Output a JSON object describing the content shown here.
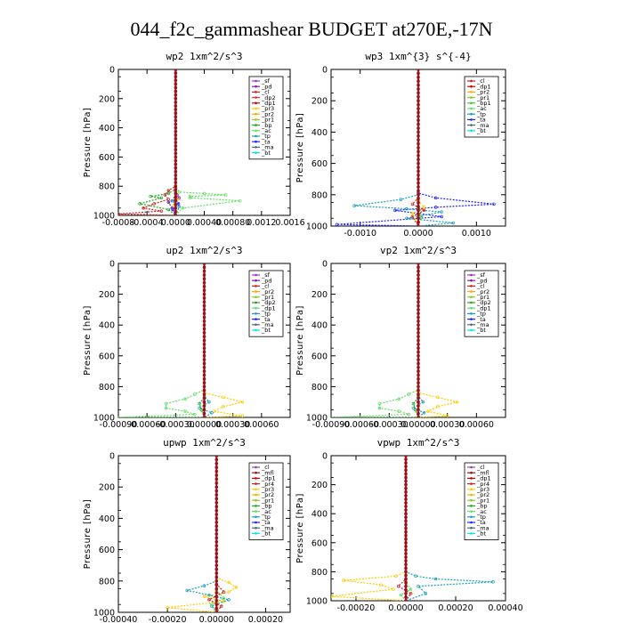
{
  "figure_title": "044_f2c_gammashear  BUDGET at270E,-17N",
  "colors": {
    "sf": "#9933cc",
    "pd": "#7a1fa2",
    "cl": "#cc2222",
    "dp": "#ee3333",
    "pr": "#ffcc00",
    "bp": "#22aa22",
    "ac": "#66dd66",
    "tp": "#1a9fb8",
    "ta": "#2222ff",
    "ma": "#556677",
    "bt": "#00e5ee",
    "mfl": "#8b1a1a",
    "dp1": "#cc0000",
    "pr1": "#88cc22",
    "pr2": "#ffaa00",
    "bp1": "#33cc33",
    "purple": "#8e44ad",
    "darkred": "#a01010"
  },
  "chart_data": [
    {
      "type": "line",
      "title": "wp2   1xm^2/s^3",
      "ylabel": "Pressure  [hPa]",
      "xlim": [
        -0.0008,
        0.0016
      ],
      "ylim": [
        1000,
        0
      ],
      "xticks": [
        -0.0008,
        -0.0004,
        0.0,
        0.0004,
        0.0008,
        0.0012,
        0.0016
      ],
      "xtick_labels": [
        "-0.0008",
        "-0.0004",
        "0.0000",
        "0.00040",
        "0.00080",
        "0.0012",
        "0.0016"
      ],
      "yticks": [
        0,
        200,
        400,
        600,
        800,
        1000
      ],
      "legend": [
        "_sf",
        "_pd",
        "_cl",
        "_dp2",
        "_dp1",
        "_pr3",
        "_pr2",
        "_pr1",
        "_bp",
        "_ac",
        "_tp",
        "_ta",
        "_ma",
        "_bt"
      ],
      "legend_colors": [
        "sf",
        "pd",
        "cl",
        "dp",
        "dp1",
        "pr",
        "pr2",
        "pr1",
        "bp",
        "ac",
        "tp",
        "ta",
        "ma",
        "bt"
      ],
      "legend_position": "top-right",
      "series": [
        {
          "color": "ac",
          "x": [
            0,
            0,
            5e-05,
            0.0004,
            0.0007,
            0.0002,
            0.0002,
            0.0009,
            0.0001,
            0
          ],
          "y": [
            0,
            800,
            840,
            850,
            860,
            870,
            880,
            900,
            950,
            1000
          ]
        },
        {
          "color": "bp",
          "x": [
            0,
            0,
            -0.0001,
            -0.00035,
            -0.0002,
            -0.0005,
            -0.0001,
            0
          ],
          "y": [
            0,
            820,
            850,
            870,
            880,
            920,
            960,
            1000
          ]
        },
        {
          "color": "cl",
          "x": [
            0,
            0,
            -0.0001,
            -0.00015,
            -0.0001,
            -0.0003,
            -0.00045,
            -0.0002,
            -0.0008,
            0
          ],
          "y": [
            0,
            800,
            830,
            860,
            890,
            920,
            950,
            970,
            990,
            1000
          ]
        },
        {
          "color": "pd",
          "x": [
            0,
            0,
            2e-05,
            5e-05,
            -0.0001,
            -5e-05,
            0
          ],
          "y": [
            0,
            840,
            860,
            880,
            910,
            950,
            1000
          ]
        },
        {
          "color": "tp",
          "x": [
            0,
            0,
            -5e-05,
            5e-05,
            0
          ],
          "y": [
            0,
            860,
            900,
            940,
            1000
          ]
        },
        {
          "color": "ta",
          "x": [
            0,
            0,
            4e-05,
            -4e-05,
            0
          ],
          "y": [
            0,
            880,
            920,
            960,
            1000
          ]
        },
        {
          "color": "pr",
          "x": [
            0,
            0,
            3e-05,
            -2e-05,
            0
          ],
          "y": [
            0,
            850,
            890,
            930,
            1000
          ]
        },
        {
          "color": "sf",
          "x": [
            0,
            0,
            0
          ],
          "y": [
            0,
            900,
            1000
          ]
        }
      ]
    },
    {
      "type": "line",
      "title": "wp3   1xm^{3} s^{-4}",
      "ylabel": "Pressure  [hPa]",
      "xlim": [
        -0.0015,
        0.0015
      ],
      "ylim": [
        1000,
        0
      ],
      "xticks": [
        -0.001,
        0.0,
        0.001
      ],
      "xtick_labels": [
        "-0.0010",
        "0.0000",
        "0.0010"
      ],
      "yticks": [
        0,
        200,
        400,
        600,
        800,
        1000
      ],
      "legend": [
        "_cl",
        "_dp1",
        "_pr2",
        "_pr1",
        "_bp1",
        "_ac",
        "_tp",
        "_ta",
        "_ma",
        "_bt"
      ],
      "legend_colors": [
        "cl",
        "dp1",
        "pr2",
        "pr1",
        "bp1",
        "ac",
        "tp",
        "ta",
        "ma",
        "bt"
      ],
      "legend_position": "top-right",
      "series": [
        {
          "color": "ta",
          "x": [
            0,
            0,
            0.0003,
            0.0013,
            0.0003,
            -0.0004,
            0.0004,
            -0.0014,
            0
          ],
          "y": [
            0,
            790,
            820,
            860,
            880,
            900,
            940,
            990,
            1000
          ]
        },
        {
          "color": "tp",
          "x": [
            0,
            0,
            -0.0003,
            -0.0011,
            -0.0002,
            0.0004,
            -0.0002,
            0.0006,
            0
          ],
          "y": [
            0,
            800,
            830,
            870,
            890,
            910,
            950,
            980,
            1000
          ]
        },
        {
          "color": "cl",
          "x": [
            0,
            0,
            -0.0001,
            0.0001,
            -0.0001,
            0
          ],
          "y": [
            0,
            820,
            860,
            900,
            940,
            1000
          ]
        },
        {
          "color": "pr",
          "x": [
            0,
            0,
            0.0001,
            -0.0001,
            0
          ],
          "y": [
            0,
            840,
            880,
            920,
            1000
          ]
        },
        {
          "color": "bp1",
          "x": [
            0,
            0,
            5e-05,
            0
          ],
          "y": [
            0,
            880,
            940,
            1000
          ]
        }
      ]
    },
    {
      "type": "line",
      "title": "up2   1xm^2/s^3",
      "ylabel": "Pressure  [hPa]",
      "xlim": [
        -0.0009,
        0.0009
      ],
      "ylim": [
        1000,
        0
      ],
      "xticks": [
        -0.0009,
        -0.0006,
        -0.0003,
        0.0,
        0.0003,
        0.0006
      ],
      "xtick_labels": [
        "-0.00090",
        "-0.00060",
        "-0.00030",
        "0.00000",
        "0.00030",
        "0.00060"
      ],
      "yticks": [
        0,
        200,
        400,
        600,
        800,
        1000
      ],
      "legend": [
        "_sf",
        "_pd",
        "_cl",
        "_pr2",
        "_pr1",
        "_dp2",
        "_dp1",
        "_tp",
        "_ta",
        "_ma",
        "_bt"
      ],
      "legend_colors": [
        "sf",
        "pd",
        "cl",
        "pr2",
        "pr1",
        "bp",
        "ac",
        "tp",
        "ta",
        "ma",
        "bt"
      ],
      "legend_position": "top-right",
      "series": [
        {
          "color": "ac",
          "x": [
            0,
            0,
            -0.0001,
            -0.0002,
            -0.0004,
            -0.0004,
            -0.0002,
            -0.0001,
            -0.0009,
            0
          ],
          "y": [
            0,
            820,
            850,
            880,
            910,
            940,
            960,
            980,
            1000,
            1000
          ]
        },
        {
          "color": "pr",
          "x": [
            0,
            0,
            0.0002,
            0.0004,
            0.0002,
            0.0001,
            0.0004,
            0
          ],
          "y": [
            0,
            840,
            870,
            900,
            930,
            960,
            990,
            1000
          ]
        },
        {
          "color": "tp",
          "x": [
            0,
            0,
            5e-05,
            -5e-05,
            8e-05,
            0
          ],
          "y": [
            0,
            860,
            900,
            940,
            970,
            1000
          ]
        },
        {
          "color": "bp",
          "x": [
            0,
            0,
            -5e-05,
            -3e-05,
            0
          ],
          "y": [
            0,
            870,
            910,
            950,
            1000
          ]
        },
        {
          "color": "cl",
          "x": [
            0,
            0,
            0
          ],
          "y": [
            0,
            900,
            1000
          ]
        }
      ]
    },
    {
      "type": "line",
      "title": "vp2   1xm^2/s^3",
      "ylabel": "Pressure  [hPa]",
      "xlim": [
        -0.0009,
        0.0009
      ],
      "ylim": [
        1000,
        0
      ],
      "xticks": [
        -0.0009,
        -0.0006,
        -0.0003,
        0.0,
        0.0003,
        0.0006
      ],
      "xtick_labels": [
        "-0.00090",
        "-0.00060",
        "-0.00030",
        "0.00000",
        "0.00030",
        "0.00060"
      ],
      "yticks": [
        0,
        200,
        400,
        600,
        800,
        1000
      ],
      "legend": [
        "_sf",
        "_pd",
        "_cl",
        "_pr2",
        "_pr1",
        "_dp2",
        "_dp1",
        "_tp",
        "_ta",
        "_ma",
        "_bt"
      ],
      "legend_colors": [
        "sf",
        "pd",
        "cl",
        "pr2",
        "pr1",
        "bp",
        "ac",
        "tp",
        "ta",
        "ma",
        "bt"
      ],
      "legend_position": "top-right",
      "series": [
        {
          "color": "ac",
          "x": [
            0,
            0,
            -0.0001,
            -0.0002,
            -0.0004,
            -0.0004,
            -0.0002,
            -0.0001,
            -0.0009,
            0
          ],
          "y": [
            0,
            820,
            850,
            880,
            910,
            940,
            960,
            980,
            1000,
            1000
          ]
        },
        {
          "color": "pr",
          "x": [
            0,
            0,
            0.0002,
            0.0004,
            0.0002,
            0.0001,
            0.0003,
            0
          ],
          "y": [
            0,
            840,
            870,
            900,
            930,
            960,
            990,
            1000
          ]
        },
        {
          "color": "tp",
          "x": [
            0,
            0,
            5e-05,
            -5e-05,
            6e-05,
            0
          ],
          "y": [
            0,
            860,
            900,
            940,
            970,
            1000
          ]
        },
        {
          "color": "bp",
          "x": [
            0,
            0,
            -5e-05,
            -3e-05,
            0
          ],
          "y": [
            0,
            870,
            910,
            950,
            1000
          ]
        },
        {
          "color": "cl",
          "x": [
            0,
            0,
            0
          ],
          "y": [
            0,
            900,
            1000
          ]
        }
      ]
    },
    {
      "type": "line",
      "title": "upwp   1xm^2/s^3",
      "ylabel": "Pressure  [hPa]",
      "xlim": [
        -0.0004,
        0.0003
      ],
      "ylim": [
        1000,
        0
      ],
      "xticks": [
        -0.0004,
        -0.0002,
        0.0,
        0.0002
      ],
      "xtick_labels": [
        "-0.00040",
        "-0.00020",
        "0.00000",
        "0.00020"
      ],
      "yticks": [
        0,
        200,
        400,
        600,
        800,
        1000
      ],
      "legend": [
        "_cl",
        "_mfl",
        "_dp1",
        "_pr4",
        "_pr3",
        "_pr2",
        "_pr1",
        "_bp",
        "_ac",
        "_tp",
        "_ta",
        "_ma",
        "_bt"
      ],
      "legend_colors": [
        "purple",
        "mfl",
        "dp1",
        "cl",
        "pr",
        "pr2",
        "pr1",
        "bp",
        "ac",
        "tp",
        "ta",
        "ma",
        "bt"
      ],
      "legend_position": "top-right",
      "series": [
        {
          "color": "pr",
          "x": [
            0,
            0,
            5e-05,
            8e-05,
            5e-05,
            -5e-05,
            3e-05,
            -0.0002,
            0
          ],
          "y": [
            0,
            780,
            810,
            840,
            870,
            900,
            930,
            970,
            1000
          ]
        },
        {
          "color": "tp",
          "x": [
            0,
            0,
            -5e-05,
            -0.00012,
            -3e-05,
            5e-05,
            -2e-05,
            0
          ],
          "y": [
            0,
            800,
            830,
            860,
            890,
            920,
            960,
            1000
          ]
        },
        {
          "color": "cl",
          "x": [
            0,
            0,
            3e-05,
            -3e-05,
            2e-05,
            0
          ],
          "y": [
            0,
            820,
            870,
            920,
            960,
            1000
          ]
        },
        {
          "color": "ac",
          "x": [
            0,
            0,
            3e-05,
            -2e-05,
            0
          ],
          "y": [
            0,
            860,
            910,
            950,
            1000
          ]
        },
        {
          "color": "purple",
          "x": [
            0,
            0,
            0
          ],
          "y": [
            0,
            900,
            1000
          ]
        }
      ]
    },
    {
      "type": "line",
      "title": "vpwp   1xm^2/s^3",
      "ylabel": "Pressure  [hPa]",
      "xlim": [
        -0.0003,
        0.0004
      ],
      "ylim": [
        1000,
        0
      ],
      "xticks": [
        -0.0002,
        0.0,
        0.0002,
        0.0004
      ],
      "xtick_labels": [
        "-0.00020",
        "0.00000",
        "0.00020",
        "0.00040"
      ],
      "yticks": [
        0,
        200,
        400,
        600,
        800,
        1000
      ],
      "legend": [
        "_cl",
        "_mfl",
        "_dp1",
        "_pr4",
        "_pr3",
        "_pr2",
        "_pr1",
        "_bp",
        "_ac",
        "_tp",
        "_ta",
        "_ma",
        "_bt"
      ],
      "legend_colors": [
        "purple",
        "mfl",
        "dp1",
        "cl",
        "pr",
        "pr2",
        "pr1",
        "bp",
        "ac",
        "tp",
        "ta",
        "ma",
        "bt"
      ],
      "legend_position": "top-right",
      "series": [
        {
          "color": "pr",
          "x": [
            0,
            0,
            -4e-05,
            -0.00025,
            -0.0001,
            -5e-05,
            -0.0003,
            0
          ],
          "y": [
            0,
            800,
            830,
            860,
            890,
            920,
            970,
            1000
          ]
        },
        {
          "color": "tp",
          "x": [
            0,
            0,
            4e-05,
            0.00012,
            0.00035,
            5e-05,
            8e-05,
            0
          ],
          "y": [
            0,
            800,
            830,
            850,
            870,
            900,
            950,
            1000
          ]
        },
        {
          "color": "cl",
          "x": [
            0,
            0,
            -3e-05,
            2e-05,
            0
          ],
          "y": [
            0,
            850,
            900,
            950,
            1000
          ]
        },
        {
          "color": "ac",
          "x": [
            0,
            0,
            2e-05,
            -2e-05,
            0
          ],
          "y": [
            0,
            870,
            920,
            960,
            1000
          ]
        },
        {
          "color": "purple",
          "x": [
            0,
            0,
            0
          ],
          "y": [
            0,
            900,
            1000
          ]
        }
      ]
    }
  ]
}
